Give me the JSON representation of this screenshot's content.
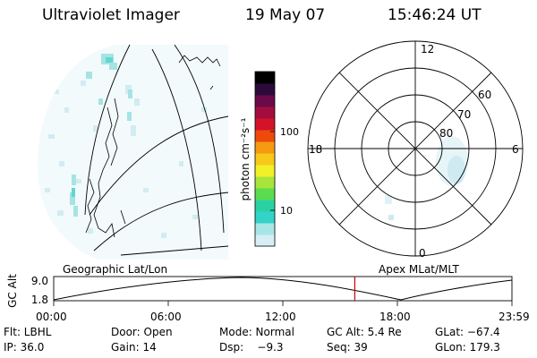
{
  "header": {
    "instrument": "Ultraviolet Imager",
    "date": "19 May 07",
    "time": "15:46:24 UT"
  },
  "geographic_panel": {
    "caption": "Geographic Lat/Lon"
  },
  "colorbar": {
    "unit": "photon cm⁻²s⁻¹",
    "ticks": [
      "100",
      "10"
    ],
    "colors": [
      "#d7eef5",
      "#a8e6e6",
      "#33d3c9",
      "#2ad2a3",
      "#5bdc4e",
      "#a8e43a",
      "#f2f026",
      "#f8c81a",
      "#f59a11",
      "#ee4a0c",
      "#d3132a",
      "#a30d3e",
      "#6a0a4a",
      "#2c0b3a",
      "#000000"
    ]
  },
  "polar_panel": {
    "caption": "Apex MLat/MLT",
    "hour_labels": [
      "12",
      "6",
      "0",
      "18"
    ],
    "lat_labels": [
      "60",
      "70",
      "80"
    ]
  },
  "altitude_plot": {
    "ylabel": "GC Alt",
    "yticks": [
      "9.0",
      "1.8"
    ],
    "xticks": [
      "00:00",
      "06:00",
      "12:00",
      "18:00",
      "23:59"
    ],
    "current_time_hours": 15.77,
    "marker_color": "#cc0000"
  },
  "status": {
    "filter": "Flt: LBHL",
    "door": "Door: Open",
    "mode": "Mode: Normal",
    "gc_alt": "GC Alt: 5.4 Re",
    "glat": "GLat: −67.4",
    "ip": "IP: 36.0",
    "gain": "Gain: 14",
    "dsp": "Dsp:    −9.3",
    "seq": "Seq: 39",
    "glon": "GLon: 179.3"
  }
}
